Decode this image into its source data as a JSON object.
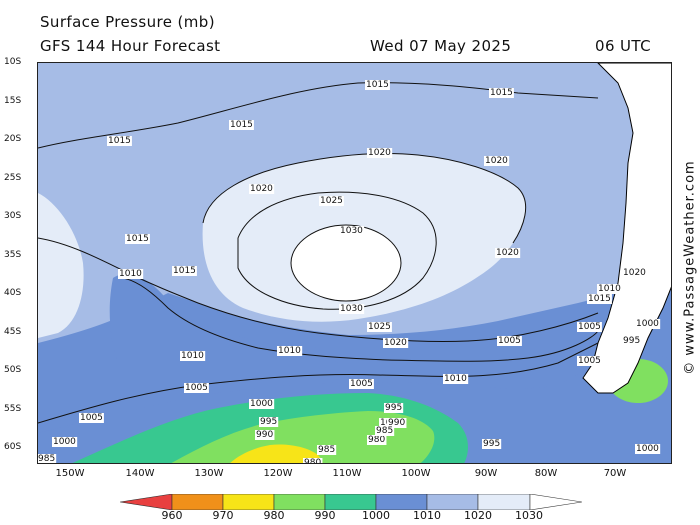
{
  "header": {
    "title": "Surface Pressure (mb)",
    "subtitle": "GFS 144 Hour Forecast",
    "date": "Wed 07 May 2025",
    "time": "06 UTC"
  },
  "credit": "© www.PassageWeather.com",
  "latitude_labels": [
    "10S",
    "15S",
    "20S",
    "25S",
    "30S",
    "35S",
    "40S",
    "45S",
    "50S",
    "55S",
    "60S"
  ],
  "longitude_labels": [
    "150W",
    "140W",
    "130W",
    "120W",
    "110W",
    "100W",
    "90W",
    "80W",
    "70W"
  ],
  "colorbar": {
    "labels": [
      "960",
      "970",
      "980",
      "990",
      "1000",
      "1010",
      "1020",
      "1030"
    ],
    "colors": [
      "#e84040",
      "#f0901a",
      "#f7e418",
      "#80e060",
      "#38c890",
      "#6a8fd4",
      "#a6bce6",
      "#e4ecf8"
    ]
  },
  "isobar_labels": [
    "1015",
    "1015",
    "1015",
    "1015",
    "1020",
    "1020",
    "1020",
    "1025",
    "1030",
    "1030",
    "1025",
    "1020",
    "1015",
    "1015",
    "1010",
    "1010",
    "1010",
    "1010",
    "1005",
    "1005",
    "1005",
    "1005",
    "1000",
    "1000",
    "995",
    "990",
    "985",
    "980",
    "995",
    "990",
    "985",
    "980",
    "985",
    "1000",
    "995",
    "1005",
    "1015",
    "1010",
    "1020",
    "1020",
    "1005",
    "995",
    "1000",
    "1000"
  ]
}
